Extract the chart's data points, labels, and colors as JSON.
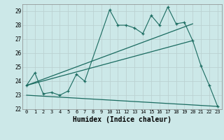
{
  "title": "",
  "xlabel": "Humidex (Indice chaleur)",
  "bg_color": "#cce8e8",
  "line_color": "#1a6b60",
  "xlim": [
    -0.5,
    23.5
  ],
  "ylim": [
    22,
    29.5
  ],
  "xticks": [
    0,
    1,
    2,
    3,
    4,
    5,
    6,
    7,
    8,
    9,
    10,
    11,
    12,
    13,
    14,
    15,
    16,
    17,
    18,
    19,
    20,
    21,
    22,
    23
  ],
  "yticks": [
    22,
    23,
    24,
    25,
    26,
    27,
    28,
    29
  ],
  "series1_x": [
    0,
    1,
    2,
    3,
    4,
    5,
    6,
    7,
    10,
    11,
    12,
    13,
    14,
    15,
    16,
    17,
    18,
    19,
    20,
    21,
    22,
    23
  ],
  "series1_y": [
    23.7,
    24.6,
    23.1,
    23.2,
    23.0,
    23.3,
    24.5,
    24.0,
    29.1,
    28.0,
    28.0,
    27.8,
    27.4,
    28.7,
    28.0,
    29.3,
    28.1,
    28.2,
    26.9,
    25.1,
    23.7,
    22.2
  ],
  "series2_x": [
    0,
    20
  ],
  "series2_y": [
    23.7,
    26.9
  ],
  "series3_x": [
    0,
    20
  ],
  "series3_y": [
    23.7,
    28.1
  ],
  "series4_x": [
    0,
    23
  ],
  "series4_y": [
    23.0,
    22.2
  ]
}
